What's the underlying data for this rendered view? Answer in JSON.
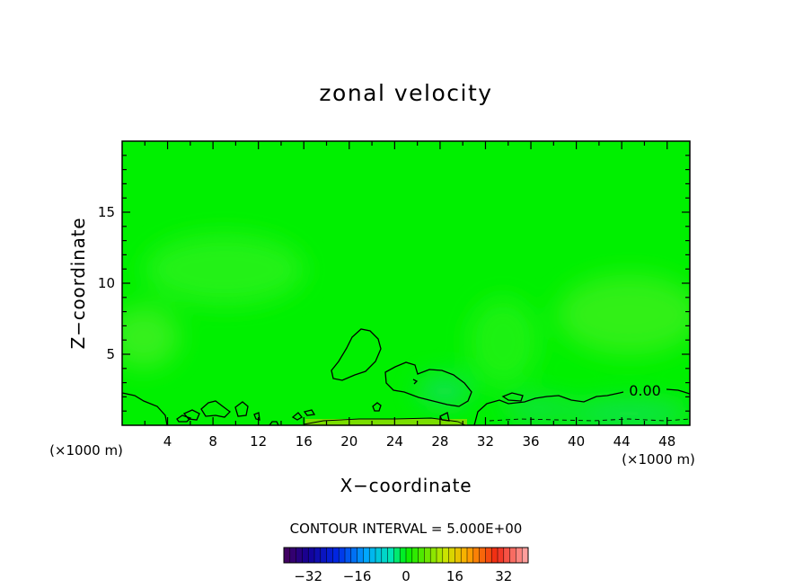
{
  "chart_data": {
    "type": "heatmap",
    "title": "zonal velocity",
    "xlabel": "X−coordinate",
    "ylabel": "Z−coordinate",
    "x_units_left": "(×1000 m)",
    "x_units_right": "(×1000 m)",
    "xlim": [
      0,
      50
    ],
    "ylim": [
      0,
      20
    ],
    "x_ticks": [
      4,
      8,
      12,
      16,
      20,
      24,
      28,
      32,
      36,
      40,
      44,
      48
    ],
    "y_ticks": [
      5,
      10,
      15
    ],
    "contour_label": "0.00",
    "contour_interval_text": "CONTOUR INTERVAL = 5.000E+00",
    "colorbar": {
      "min": -40,
      "max": 40,
      "ticks": [
        -32,
        -16,
        0,
        16,
        32
      ],
      "tick_labels": [
        "−32",
        "−16",
        "0",
        "16",
        "32"
      ]
    },
    "field_value_dominant": 0,
    "colors": {
      "field": "#00f000",
      "field_light": "#30f018",
      "field_positive": "#7de000",
      "field_negative": "#10e060"
    }
  }
}
